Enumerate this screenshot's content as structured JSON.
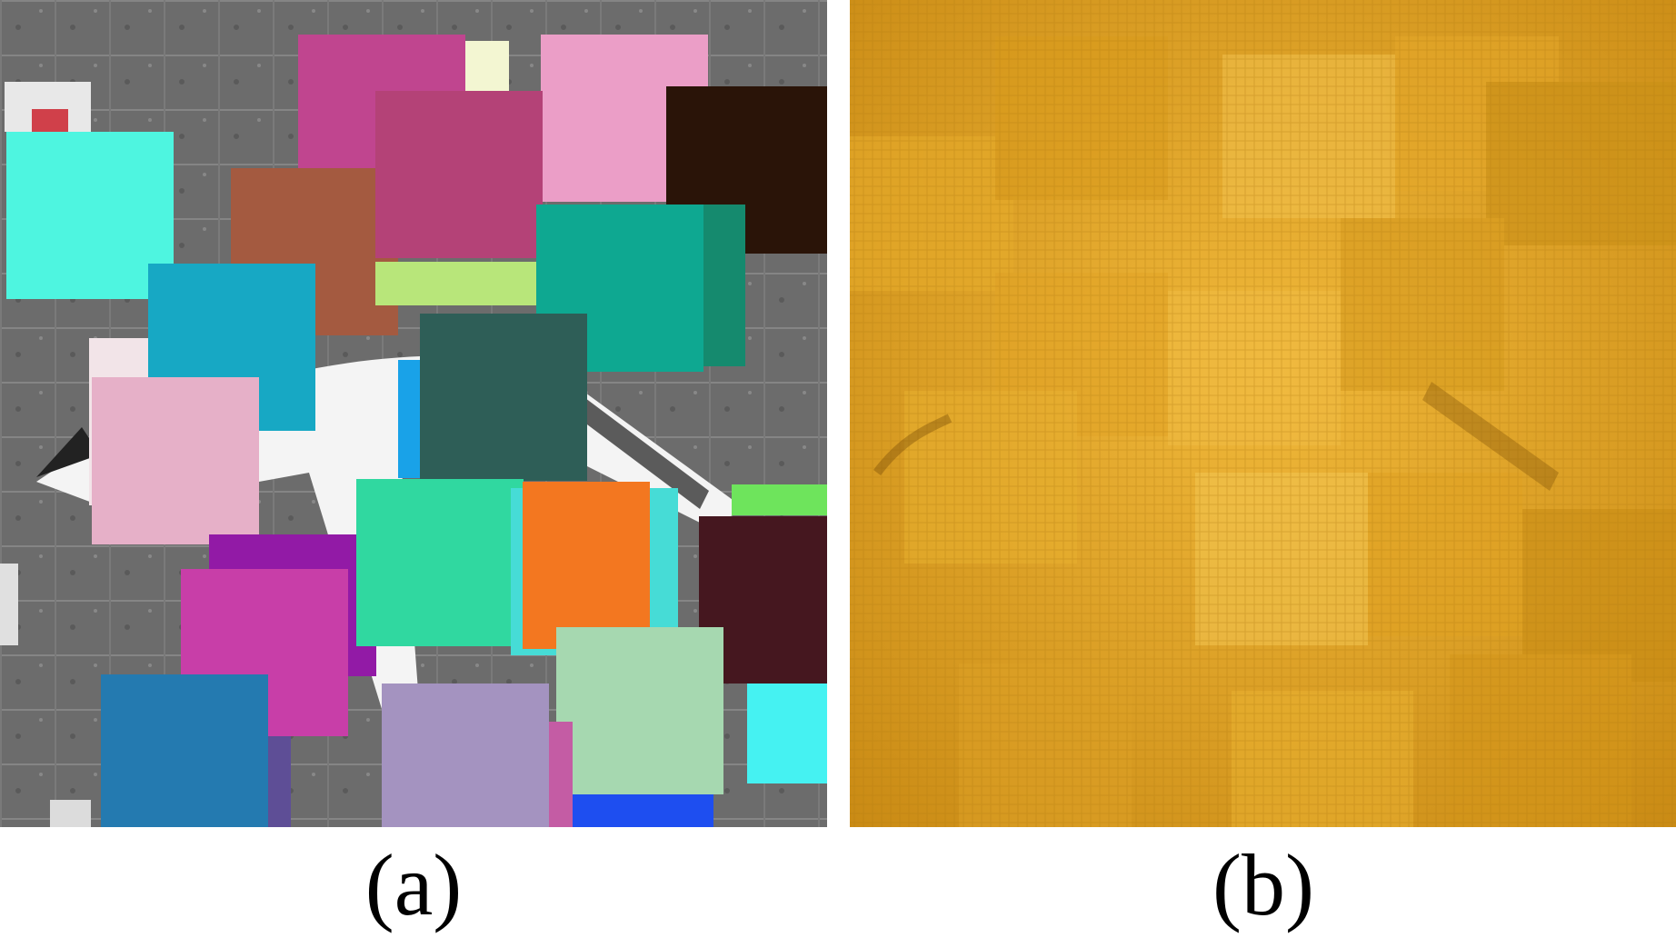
{
  "panels": [
    {
      "caption": "(a)",
      "background": "aerial-airport-photo",
      "patch_colors": [
        "#4ef5e0",
        "#c0458f",
        "#f3f6d2",
        "#eb9ec7",
        "#b44277",
        "#2a1408",
        "#a45a40",
        "#b8e67a",
        "#0ea891",
        "#17a8c4",
        "#2e5e57",
        "#f2e4e8",
        "#e6b0c8",
        "#19a2e8",
        "#30d8a0",
        "#f37720",
        "#46dcd6",
        "#6ee45c",
        "#45171f",
        "#921aa6",
        "#c83ea8",
        "#247ab0",
        "#a493c0",
        "#a6d8b0",
        "#1e4ef0",
        "#c45ca4",
        "#45f2f2",
        "#5e4e96"
      ]
    },
    {
      "caption": "(b)",
      "background": "golden-textured-noise",
      "patch_colors": [
        "#e7ad2c",
        "#c98f16",
        "#f2c24e"
      ]
    }
  ]
}
